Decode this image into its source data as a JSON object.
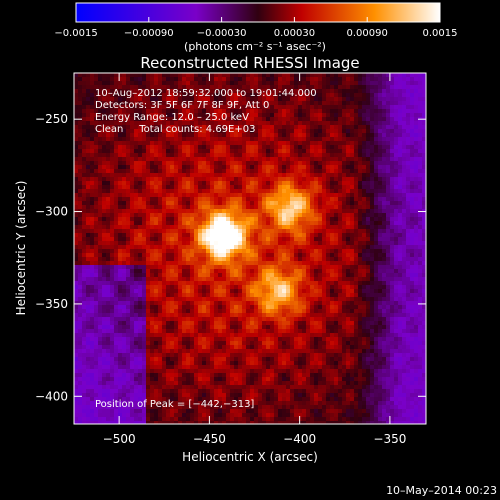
{
  "chart_data": {
    "type": "heatmap",
    "title": "Reconstructed RHESSI Image",
    "xlabel": "Heliocentric X (arcsec)",
    "ylabel": "Heliocentric Y (arcsec)",
    "xlim": [
      -525,
      -330
    ],
    "ylim": [
      -415,
      -225
    ],
    "x_ticks": [
      -500,
      -450,
      -400,
      -350
    ],
    "x_tick_labels": [
      "−500",
      "−450",
      "−400",
      "−350"
    ],
    "y_ticks": [
      -250,
      -300,
      -350,
      -400
    ],
    "y_tick_labels": [
      "−250",
      "−300",
      "−350",
      "−400"
    ],
    "colorbar": {
      "min": -0.0015,
      "max": 0.0015,
      "ticks": [
        -0.0015,
        -0.0009,
        -0.0003,
        0.0003,
        0.0009,
        0.0015
      ],
      "tick_labels": [
        "−0.0015",
        "−0.00090",
        "−0.00030",
        "0.00030",
        "0.00090",
        "0.0015"
      ],
      "units": "(photons cm⁻² s⁻¹ asec⁻²)"
    },
    "annotations": {
      "time": "10–Aug–2012 18:59:32.000 to 19:01:44.000",
      "detectors": "Detectors: 3F 5F 6F 7F 8F 9F, Att 0",
      "energy": "Energy Range: 12.0 – 25.0 keV",
      "clean": "Clean     Total counts: 4.69E+03",
      "peak": "Position of Peak = [−442,−313]"
    },
    "sources": [
      {
        "x": -442,
        "y": -313,
        "value": 0.0015
      },
      {
        "x": -405,
        "y": -298,
        "value": 0.00095
      },
      {
        "x": -412,
        "y": -343,
        "value": 0.00085
      }
    ],
    "footer": "10–May–2014 00:23"
  }
}
